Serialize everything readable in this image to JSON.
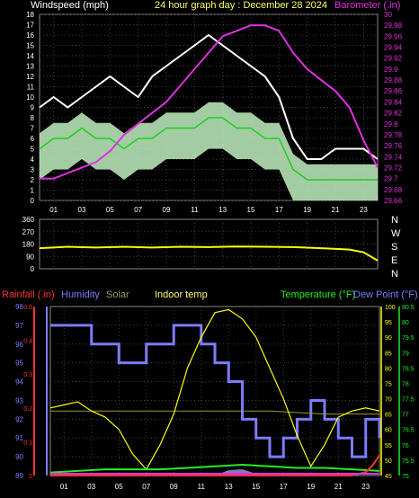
{
  "chart_data": [
    {
      "type": "line",
      "title": "24 hour graph day : December 28 2024",
      "left_label": "Windspeed (mph)",
      "right_label": "Barometer (.in)",
      "x_ticks": [
        "01",
        "03",
        "05",
        "07",
        "09",
        "11",
        "13",
        "15",
        "17",
        "19",
        "21",
        "23"
      ],
      "y_left_ticks": [
        "0",
        "1",
        "2",
        "3",
        "4",
        "5",
        "6",
        "7",
        "8",
        "9",
        "10",
        "11",
        "12",
        "13",
        "14",
        "15",
        "16",
        "17",
        "18"
      ],
      "y_right_ticks": [
        "29.66",
        "29.68",
        "29.7",
        "29.72",
        "29.74",
        "29.76",
        "29.78",
        "29.8",
        "29.82",
        "29.84",
        "29.86",
        "29.88",
        "29.9",
        "29.92",
        "29.94",
        "29.96",
        "29.98",
        "30"
      ],
      "ylim_left": [
        0,
        18
      ],
      "ylim_right": [
        29.66,
        30.0
      ],
      "grid": true,
      "series": [
        {
          "name": "Barometer",
          "color": "#e030e0",
          "x": [
            0,
            1,
            2,
            3,
            4,
            5,
            6,
            7,
            8,
            9,
            10,
            11,
            12,
            13,
            14,
            15,
            16,
            17,
            18,
            19,
            20,
            21,
            22,
            23,
            24
          ],
          "y": [
            29.7,
            29.7,
            29.71,
            29.72,
            29.73,
            29.75,
            29.78,
            29.8,
            29.82,
            29.84,
            29.87,
            29.9,
            29.93,
            29.96,
            29.97,
            29.98,
            29.98,
            29.97,
            29.93,
            29.9,
            29.88,
            29.86,
            29.83,
            29.77,
            29.72
          ]
        },
        {
          "name": "Wind gust",
          "color": "#ffffff",
          "x": [
            0,
            1,
            2,
            3,
            4,
            5,
            6,
            7,
            8,
            9,
            10,
            11,
            12,
            13,
            14,
            15,
            16,
            17,
            18,
            19,
            20,
            21,
            22,
            23,
            24
          ],
          "y": [
            9,
            10,
            9,
            10,
            11,
            12,
            11,
            10,
            12,
            13,
            14,
            15,
            16,
            15,
            14,
            13,
            12,
            10,
            6,
            4,
            4,
            5,
            5,
            5,
            4
          ]
        },
        {
          "name": "Wind average",
          "color": "#22cc22",
          "x": [
            0,
            1,
            2,
            3,
            4,
            5,
            6,
            7,
            8,
            9,
            10,
            11,
            12,
            13,
            14,
            15,
            16,
            17,
            18,
            19,
            20,
            21,
            22,
            23,
            24
          ],
          "y": [
            5,
            6,
            6,
            7,
            6,
            6,
            5,
            6,
            6,
            7,
            7,
            7,
            8,
            8,
            7,
            7,
            6,
            6,
            3,
            2,
            2,
            2,
            2,
            2,
            2
          ]
        }
      ]
    },
    {
      "type": "line",
      "y_ticks": [
        "360",
        "270",
        "180",
        "90",
        "0"
      ],
      "right_labels": [
        "N",
        "W",
        "S",
        "E",
        "N"
      ],
      "ylim": [
        0,
        360
      ],
      "grid": true,
      "series": [
        {
          "name": "Wind direction",
          "color": "#ffff00",
          "x": [
            0,
            2,
            4,
            6,
            8,
            10,
            12,
            14,
            16,
            18,
            20,
            22,
            23,
            24
          ],
          "y": [
            150,
            160,
            155,
            160,
            155,
            160,
            158,
            162,
            160,
            158,
            150,
            140,
            120,
            60
          ]
        }
      ]
    },
    {
      "type": "line",
      "labels": {
        "rainfall": "Rainfall (.in)",
        "humidity": "Humidity",
        "solar": "Solar",
        "indoor": "Indoor temp",
        "temperature": "Temperature (°F)",
        "dewpoint": "Dew Point (°F)"
      },
      "y_left_rain_ticks": [
        "0",
        "0.1",
        "0.2",
        "0.3",
        "0.4",
        "0.5"
      ],
      "y_left_humidity_ticks": [
        "89",
        "90",
        "91",
        "92",
        "93",
        "94",
        "95",
        "96",
        "97",
        "98"
      ],
      "y_right_temp_ticks": [
        "45",
        "50",
        "55",
        "60",
        "65",
        "70",
        "75",
        "80",
        "85",
        "90",
        "95",
        "100"
      ],
      "y_right_dew_ticks": [
        "75",
        "75.5",
        "76",
        "76.5",
        "77",
        "77.5",
        "78",
        "78.5",
        "79",
        "79.5",
        "80",
        "80.5"
      ],
      "ylim_humidity": [
        89,
        98
      ],
      "ylim_temp": [
        45,
        100
      ],
      "ylim_rain": [
        0,
        0.5
      ],
      "grid": true,
      "series": [
        {
          "name": "Humidity",
          "color": "#7c7cff",
          "x": [
            0,
            2,
            3,
            4,
            5,
            6,
            7,
            8,
            9,
            10,
            11,
            12,
            13,
            14,
            15,
            16,
            17,
            18,
            19,
            20,
            21,
            22,
            23,
            24
          ],
          "y": [
            97,
            97,
            96,
            96,
            95,
            95,
            96,
            96,
            97,
            97,
            96,
            95,
            94,
            92,
            91,
            90,
            91,
            92,
            93,
            92,
            91,
            90,
            92,
            91
          ]
        },
        {
          "name": "Temperature",
          "color": "#ffff00",
          "x": [
            0,
            1,
            2,
            3,
            4,
            5,
            6,
            7,
            8,
            9,
            10,
            11,
            12,
            13,
            14,
            15,
            16,
            17,
            18,
            19,
            20,
            21,
            22,
            23,
            24
          ],
          "y": [
            67,
            68,
            69,
            66,
            64,
            60,
            52,
            47,
            55,
            65,
            80,
            90,
            98,
            99,
            96,
            90,
            80,
            70,
            58,
            48,
            55,
            64,
            66,
            67,
            66
          ]
        },
        {
          "name": "Dew Point",
          "color": "#22ee22",
          "x": [
            0,
            2,
            4,
            6,
            8,
            10,
            12,
            14,
            16,
            18,
            20,
            22,
            24
          ],
          "y": [
            75.1,
            75.15,
            75.2,
            75.2,
            75.2,
            75.25,
            75.3,
            75.35,
            75.3,
            75.25,
            75.25,
            75.2,
            75.15
          ]
        },
        {
          "name": "Indoor temp",
          "color": "#9a9a33",
          "x": [
            0,
            4,
            8,
            12,
            16,
            20,
            24
          ],
          "y": [
            66,
            66,
            66,
            66,
            66,
            65,
            65
          ]
        },
        {
          "name": "Rainfall",
          "color": "#ff3030",
          "x": [
            0,
            12,
            18,
            22,
            23,
            23.5,
            24
          ],
          "y": [
            0,
            0,
            0,
            0,
            0.01,
            0.03,
            0.06
          ]
        }
      ]
    }
  ]
}
